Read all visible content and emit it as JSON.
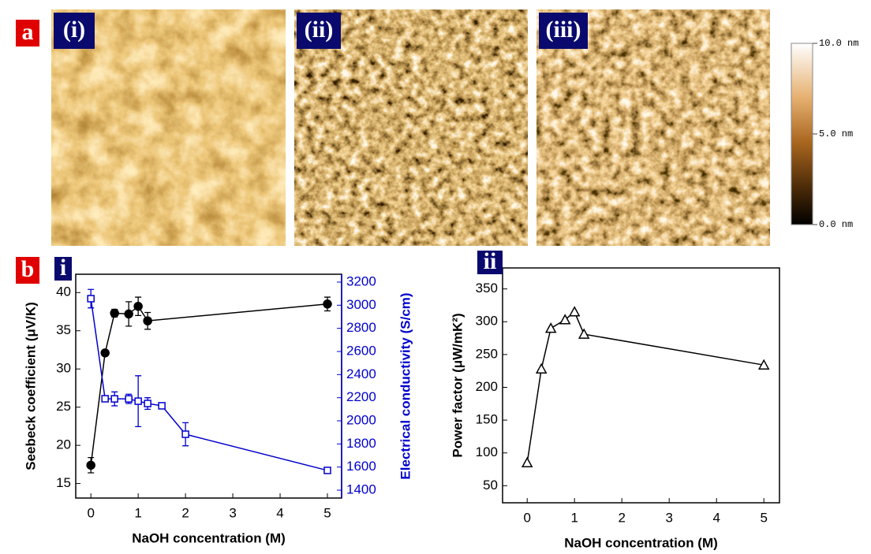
{
  "figure_a": {
    "label": "a",
    "images": [
      "(i)",
      "(ii)",
      "(iii)"
    ],
    "colorbar": {
      "lim": [
        0,
        10
      ],
      "ticks": [
        {
          "value": 10,
          "label": "10.0 nm"
        },
        {
          "value": 5,
          "label": "5.0 nm"
        },
        {
          "value": 0,
          "label": "0.0 nm"
        }
      ]
    }
  },
  "chart_data": [
    {
      "type": "line",
      "panel": "b",
      "subpanel": "i",
      "xlabel": "NaOH concentration (M)",
      "ylabel": "Seebeck coefficient (μV/K)",
      "y2label": "Electrical conductivity (S/cm)",
      "xlim": [
        -0.32,
        5.3
      ],
      "xticks": [
        0,
        1,
        2,
        3,
        4,
        5
      ],
      "ylim": [
        13.1,
        42.4
      ],
      "yticks": [
        15,
        20,
        25,
        30,
        35,
        40
      ],
      "y2lim": [
        1332,
        3268
      ],
      "y2ticks": [
        1400,
        1600,
        1800,
        2000,
        2200,
        2400,
        2600,
        2800,
        3000,
        3200
      ],
      "series": [
        {
          "name": "Seebeck coefficient",
          "color": "#000000",
          "marker": "circle",
          "x": [
            0,
            0.3,
            0.5,
            0.8,
            1.0,
            1.2,
            5
          ],
          "values": [
            17.4,
            32.1,
            37.3,
            37.2,
            38.2,
            36.3,
            38.5
          ],
          "errors": [
            1.0,
            0.3,
            0.5,
            1.6,
            1.2,
            1.1,
            0.9
          ]
        },
        {
          "name": "Electrical conductivity",
          "color": "#0000cc",
          "marker": "square",
          "axis": "y2",
          "x": [
            0,
            0.3,
            0.5,
            0.8,
            1.0,
            1.2,
            1.5,
            2.0,
            5
          ],
          "values": [
            3057,
            2191,
            2190,
            2190,
            2170,
            2150,
            2130,
            1884,
            1571
          ],
          "errors": [
            80,
            20,
            60,
            40,
            220,
            50,
            20,
            100,
            10
          ]
        }
      ]
    },
    {
      "type": "line",
      "subpanel": "ii",
      "xlabel": "NaOH concentration (M)",
      "ylabel": "Power factor (μW/mK²)",
      "xlim": [
        -0.52,
        5.33
      ],
      "xticks": [
        0,
        1,
        2,
        3,
        4,
        5
      ],
      "ylim": [
        24,
        382
      ],
      "yticks": [
        50,
        100,
        150,
        200,
        250,
        300,
        350
      ],
      "series": [
        {
          "name": "Power factor",
          "color": "#000000",
          "marker": "triangle",
          "x": [
            0,
            0.3,
            0.5,
            0.8,
            1.0,
            1.2,
            5
          ],
          "values": [
            85,
            228,
            290,
            303,
            315,
            281,
            234
          ]
        }
      ]
    }
  ]
}
